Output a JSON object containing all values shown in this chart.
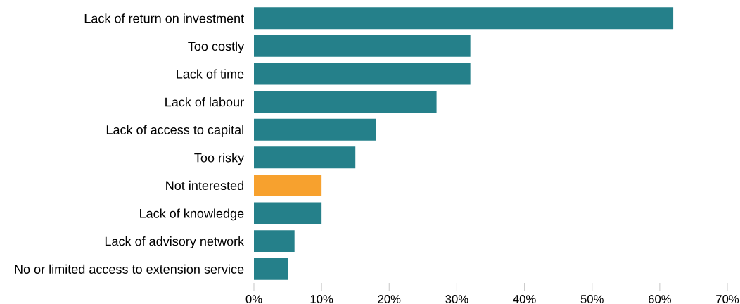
{
  "chart_data": {
    "type": "bar",
    "orientation": "horizontal",
    "categories": [
      "Lack of return on investment",
      "Too costly",
      "Lack of time",
      "Lack of labour",
      "Lack of access to capital",
      "Too risky",
      "Not interested",
      "Lack of knowledge",
      "Lack of advisory network",
      "No or limited access to extension service"
    ],
    "values": [
      62,
      32,
      32,
      27,
      18,
      15,
      10,
      10,
      6,
      5
    ],
    "colors": [
      "#25808a",
      "#25808a",
      "#25808a",
      "#25808a",
      "#25808a",
      "#25808a",
      "#f7a12e",
      "#25808a",
      "#25808a",
      "#25808a"
    ],
    "xlim": [
      0,
      70
    ],
    "xticks": [
      {
        "value": 0,
        "label": "0%"
      },
      {
        "value": 10,
        "label": "10%"
      },
      {
        "value": 20,
        "label": "20%"
      },
      {
        "value": 30,
        "label": "30%"
      },
      {
        "value": 40,
        "label": "40%"
      },
      {
        "value": 50,
        "label": "50%"
      },
      {
        "value": 60,
        "label": "60%"
      },
      {
        "value": 70,
        "label": "70%"
      }
    ],
    "grid": false,
    "legend": false
  }
}
